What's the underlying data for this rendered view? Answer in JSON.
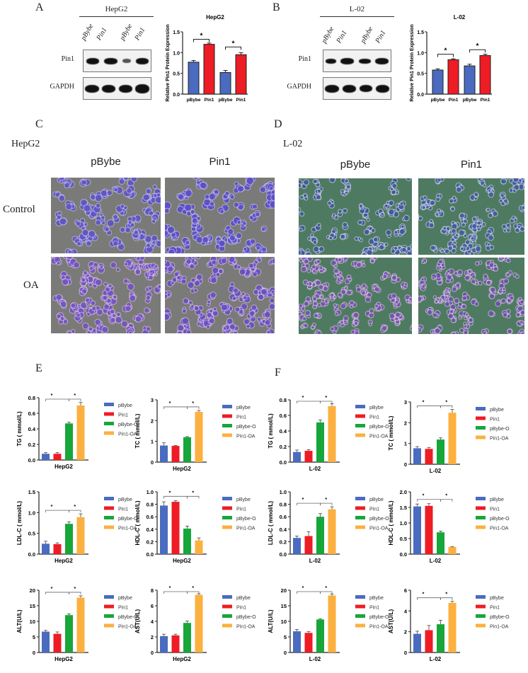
{
  "panels": {
    "A": {
      "letter": "A",
      "cell_line": "HepG2",
      "lanes": [
        "pBybe",
        "Pin1",
        "pBybe",
        "Pin1"
      ],
      "rows": [
        "Pin1",
        "GAPDH"
      ]
    },
    "B": {
      "letter": "B",
      "cell_line": "L-02",
      "lanes": [
        "pBybe",
        "Pin1",
        "pBybe",
        "Pin1"
      ],
      "rows": [
        "Pin1",
        "GAPDH"
      ]
    },
    "C": {
      "letter": "C",
      "cell_line": "HepG2",
      "columns": [
        "pBybe",
        "Pin1"
      ],
      "rows": [
        "Control",
        "OA"
      ]
    },
    "D": {
      "letter": "D",
      "cell_line": "L-02",
      "columns": [
        "pBybe",
        "Pin1"
      ],
      "rows": [
        "Control",
        "OA"
      ]
    },
    "E": {
      "letter": "E"
    },
    "F": {
      "letter": "F"
    }
  },
  "colors": {
    "pBybe": "#4a6bbf",
    "Pin1": "#ee1c24",
    "pBybe-OA": "#17a63a",
    "Pin1-OA": "#fbb040",
    "hepg2_bg": "#7a7a78",
    "l02_bg": "#4f7a62"
  },
  "legend": [
    "pBybe",
    "Pin1",
    "pBybe-OA",
    "Pin1-OA"
  ],
  "chart_data": [
    {
      "id": "A-bar",
      "type": "bar",
      "title": "HepG2",
      "ylabel": "Relative Pin1 Protein Expression",
      "xlabel": "",
      "categories": [
        "pBybe",
        "Pin1",
        "pBybe",
        "Pin1"
      ],
      "values": [
        0.77,
        1.2,
        0.52,
        0.95
      ],
      "errors": [
        0.04,
        0.03,
        0.05,
        0.05
      ],
      "ylim": [
        0,
        1.5
      ],
      "yticks": [
        "0.0",
        "0.5",
        "1.0",
        "1.5"
      ],
      "significance": [
        "*",
        "*"
      ],
      "colors": [
        "#4a6bbf",
        "#ee1c24",
        "#4a6bbf",
        "#ee1c24"
      ]
    },
    {
      "id": "B-bar",
      "type": "bar",
      "title": "L-02",
      "ylabel": "Relative Pin1 Protein Expression",
      "xlabel": "",
      "categories": [
        "pBybe",
        "Pin1",
        "pBybe",
        "Pin1"
      ],
      "values": [
        0.58,
        0.83,
        0.68,
        0.93
      ],
      "errors": [
        0.03,
        0.02,
        0.04,
        0.03
      ],
      "ylim": [
        0,
        1.5
      ],
      "yticks": [
        "0.0",
        "0.5",
        "1.0",
        "1.5"
      ],
      "significance": [
        "*",
        "*"
      ],
      "colors": [
        "#4a6bbf",
        "#ee1c24",
        "#4a6bbf",
        "#ee1c24"
      ]
    },
    {
      "id": "E-TG",
      "type": "bar",
      "xlabel": "HepG2",
      "ylabel": "TG ( mmol/L)",
      "categories": [
        "pBybe",
        "Pin1",
        "pBybe-OA",
        "Pin1-OA"
      ],
      "values": [
        0.08,
        0.08,
        0.47,
        0.7
      ],
      "errors": [
        0.015,
        0.015,
        0.015,
        0.04
      ],
      "ylim": [
        0,
        0.8
      ],
      "yticks": [
        "0.0",
        "0.2",
        "0.4",
        "0.6",
        "0.8"
      ],
      "significance": [
        "*",
        "*"
      ]
    },
    {
      "id": "E-TC",
      "type": "bar",
      "xlabel": "HepG2",
      "ylabel": "TC ( mmol/L)",
      "categories": [
        "pBybe",
        "Pin1",
        "pBybe-OA",
        "Pin1-OA"
      ],
      "values": [
        0.8,
        0.78,
        1.2,
        2.42
      ],
      "errors": [
        0.13,
        0.02,
        0.03,
        0.07
      ],
      "ylim": [
        0,
        3
      ],
      "yticks": [
        "0",
        "1",
        "2",
        "3"
      ],
      "significance": [
        "*",
        "*"
      ]
    },
    {
      "id": "E-LDL",
      "type": "bar",
      "xlabel": "HepG2",
      "ylabel": "LDL-C ( mmol/L)",
      "categories": [
        "pBybe",
        "Pin1",
        "pBybe-OA",
        "Pin1-OA"
      ],
      "values": [
        0.25,
        0.24,
        0.73,
        0.89
      ],
      "errors": [
        0.06,
        0.03,
        0.05,
        0.08
      ],
      "ylim": [
        0,
        1.5
      ],
      "yticks": [
        "0.0",
        "0.5",
        "1.0",
        "1.5"
      ],
      "significance": [
        "*",
        "*"
      ]
    },
    {
      "id": "E-HDL",
      "type": "bar",
      "xlabel": "HepG2",
      "ylabel": "HDL-C ( mmol/L)",
      "categories": [
        "pBybe",
        "Pin1",
        "pBybe-OA",
        "Pin1-OA"
      ],
      "values": [
        0.78,
        0.84,
        0.41,
        0.22
      ],
      "errors": [
        0.06,
        0.02,
        0.04,
        0.04
      ],
      "ylim": [
        0,
        1.0
      ],
      "yticks": [
        "0.0",
        "0.2",
        "0.4",
        "0.6",
        "0.8",
        "1.0"
      ],
      "significance": [
        "*",
        "*"
      ]
    },
    {
      "id": "E-ALT",
      "type": "bar",
      "xlabel": "HepG2",
      "ylabel": "ALT(U/L)",
      "categories": [
        "pBybe",
        "Pin1",
        "pBybe-OA",
        "Pin1-OA"
      ],
      "values": [
        6.7,
        6.0,
        12.0,
        17.6
      ],
      "errors": [
        0.4,
        0.6,
        0.4,
        0.6
      ],
      "ylim": [
        0,
        20
      ],
      "yticks": [
        "0",
        "5",
        "10",
        "15",
        "20"
      ],
      "significance": [
        "*",
        "*"
      ]
    },
    {
      "id": "E-AST",
      "type": "bar",
      "xlabel": "HepG2",
      "ylabel": "AST(U/L)",
      "categories": [
        "pBybe",
        "Pin1",
        "pBybe-OA",
        "Pin1-OA"
      ],
      "values": [
        2.1,
        2.2,
        3.8,
        7.4
      ],
      "errors": [
        0.25,
        0.15,
        0.25,
        0.15
      ],
      "ylim": [
        0,
        8
      ],
      "yticks": [
        "0",
        "2",
        "4",
        "6",
        "8"
      ],
      "significance": [
        "*",
        "*"
      ]
    },
    {
      "id": "F-TG",
      "type": "bar",
      "xlabel": "L-02",
      "ylabel": "TG ( mmol/L)",
      "categories": [
        "pBybe",
        "Pin1",
        "pBybe-OA",
        "Pin1-OA"
      ],
      "values": [
        0.13,
        0.145,
        0.51,
        0.72
      ],
      "errors": [
        0.025,
        0.015,
        0.03,
        0.03
      ],
      "ylim": [
        0,
        0.8
      ],
      "yticks": [
        "0.0",
        "0.2",
        "0.4",
        "0.6",
        "0.8"
      ],
      "significance": [
        "*",
        "*"
      ]
    },
    {
      "id": "F-TC",
      "type": "bar",
      "xlabel": "L-02",
      "ylabel": "TC ( mmol/L)",
      "categories": [
        "pBybe",
        "Pin1",
        "pBybe-OA",
        "Pin1-OA"
      ],
      "values": [
        0.77,
        0.74,
        1.19,
        2.48
      ],
      "errors": [
        0.08,
        0.07,
        0.08,
        0.16
      ],
      "ylim": [
        0,
        3
      ],
      "yticks": [
        "0",
        "1",
        "2",
        "3"
      ],
      "significance": [
        "*",
        "*"
      ]
    },
    {
      "id": "F-LDL",
      "type": "bar",
      "xlabel": "L-02",
      "ylabel": "LDL-C ( mmol/L)",
      "categories": [
        "pBybe",
        "Pin1",
        "pBybe-OA",
        "Pin1-OA"
      ],
      "values": [
        0.26,
        0.29,
        0.6,
        0.72
      ],
      "errors": [
        0.03,
        0.07,
        0.05,
        0.04
      ],
      "ylim": [
        0,
        1.0
      ],
      "yticks": [
        "0.0",
        "0.2",
        "0.4",
        "0.6",
        "0.8",
        "1.0"
      ],
      "significance": [
        "*",
        "*"
      ]
    },
    {
      "id": "F-HDL",
      "type": "bar",
      "xlabel": "L-02",
      "ylabel": "HDL-C ( mmol/L)",
      "categories": [
        "pBybe",
        "Pin1",
        "pBybe-OA",
        "Pin1-OA"
      ],
      "values": [
        1.53,
        1.55,
        0.7,
        0.23
      ],
      "errors": [
        0.08,
        0.07,
        0.04,
        0.01
      ],
      "ylim": [
        0,
        2.0
      ],
      "yticks": [
        "0.0",
        "0.5",
        "1.0",
        "1.5",
        "2.0"
      ],
      "significance": [
        "*",
        "*"
      ]
    },
    {
      "id": "F-ALT",
      "type": "bar",
      "xlabel": "L-02",
      "ylabel": "ALT(U/L)",
      "categories": [
        "pBybe",
        "Pin1",
        "pBybe-OA",
        "Pin1-OA"
      ],
      "values": [
        6.8,
        6.3,
        10.6,
        18.3
      ],
      "errors": [
        0.6,
        0.4,
        0.2,
        0.5
      ],
      "ylim": [
        0,
        20
      ],
      "yticks": [
        "0",
        "5",
        "10",
        "15",
        "20"
      ],
      "significance": [
        "*",
        "*"
      ]
    },
    {
      "id": "F-AST",
      "type": "bar",
      "xlabel": "L-02",
      "ylabel": "AST(U/L)",
      "categories": [
        "pBybe",
        "Pin1",
        "pBybe-OA",
        "Pin1-OA"
      ],
      "values": [
        1.8,
        2.15,
        2.72,
        4.78
      ],
      "errors": [
        0.25,
        0.45,
        0.38,
        0.15
      ],
      "ylim": [
        0,
        6
      ],
      "yticks": [
        "0",
        "2",
        "4",
        "6"
      ],
      "significance": [
        "*",
        "*"
      ]
    }
  ]
}
